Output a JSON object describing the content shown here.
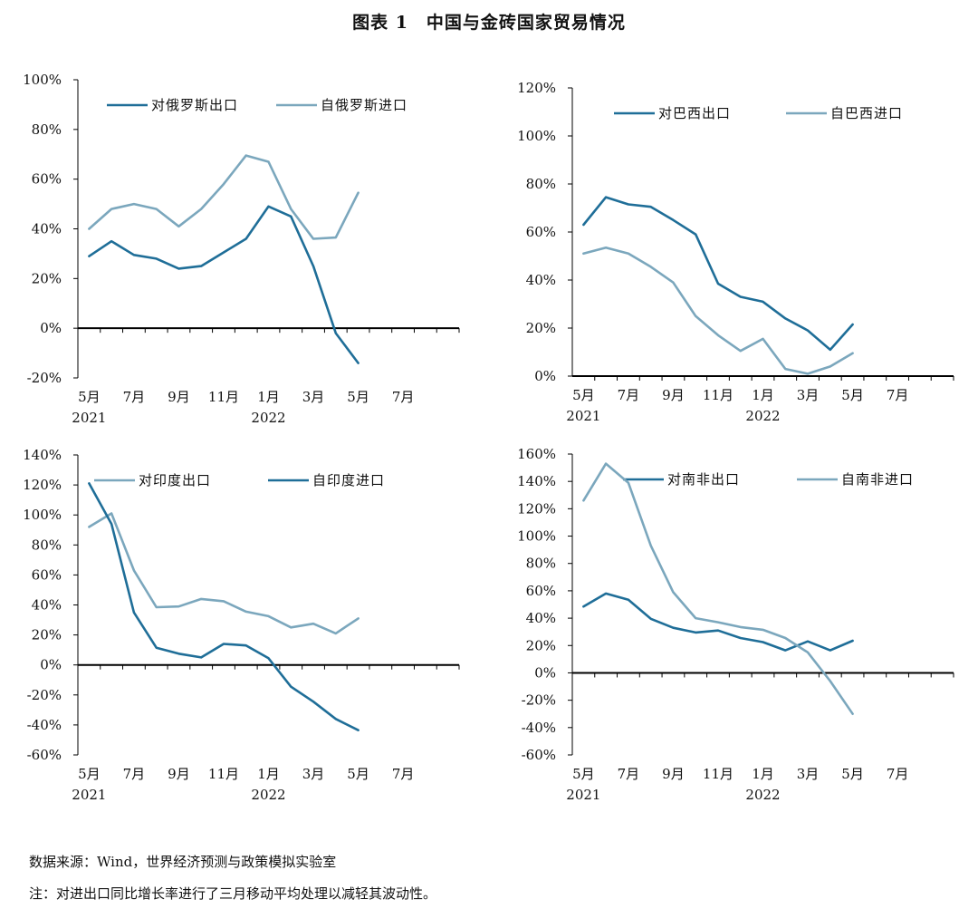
{
  "title": "图表 1　中国与金砖国家贸易情况",
  "source": "数据来源：Wind，世界经济预测与政策模拟实验室",
  "note": "注：对进出口同比增长率进行了三月移动平均处理以减轻其波动性。",
  "colors": {
    "dark": "#1f6e98",
    "light": "#7ba7bd",
    "axis": "#000000"
  },
  "chart_data": [
    {
      "type": "line",
      "x": [
        "2021-05",
        "2021-06",
        "2021-07",
        "2021-08",
        "2021-09",
        "2021-10",
        "2021-11",
        "2021-12",
        "2022-01",
        "2022-02",
        "2022-03",
        "2022-04",
        "2022-05"
      ],
      "x_tick_labels": [
        "5月",
        "7月",
        "9月",
        "11月",
        "1月",
        "3月",
        "5月",
        "7月"
      ],
      "x_year_labels": [
        "2021",
        "2022"
      ],
      "y_tick_labels": [
        "100%",
        "80%",
        "60%",
        "40%",
        "20%",
        "0%",
        "-20%"
      ],
      "ylim": [
        -20,
        100
      ],
      "legend_position": "top",
      "series": [
        {
          "name": "对俄罗斯出口",
          "color": "dark",
          "values": [
            29,
            35,
            29.5,
            28,
            24,
            25,
            30.5,
            36,
            49,
            45,
            25,
            -2,
            -14
          ]
        },
        {
          "name": "自俄罗斯进口",
          "color": "light",
          "values": [
            40,
            48,
            50,
            48,
            41,
            48,
            58,
            69.5,
            67,
            48,
            36,
            36.5,
            54.5
          ]
        }
      ]
    },
    {
      "type": "line",
      "x": [
        "2021-05",
        "2021-06",
        "2021-07",
        "2021-08",
        "2021-09",
        "2021-10",
        "2021-11",
        "2021-12",
        "2022-01",
        "2022-02",
        "2022-03",
        "2022-04",
        "2022-05"
      ],
      "x_tick_labels": [
        "5月",
        "7月",
        "9月",
        "11月",
        "1月",
        "3月",
        "5月",
        "7月"
      ],
      "x_year_labels": [
        "2021",
        "2022"
      ],
      "y_tick_labels": [
        "120%",
        "100%",
        "80%",
        "60%",
        "40%",
        "20%",
        "0%"
      ],
      "ylim": [
        0,
        120
      ],
      "legend_position": "top",
      "series": [
        {
          "name": "对巴西出口",
          "color": "dark",
          "values": [
            63,
            74.5,
            71.5,
            70.5,
            65,
            59,
            38.5,
            33,
            31,
            24,
            19,
            11,
            21.5
          ]
        },
        {
          "name": "自巴西进口",
          "color": "light",
          "values": [
            51,
            53.5,
            51,
            45.5,
            39,
            25,
            17,
            10.5,
            15.5,
            3,
            1,
            4,
            9.5
          ]
        }
      ]
    },
    {
      "type": "line",
      "x": [
        "2021-05",
        "2021-06",
        "2021-07",
        "2021-08",
        "2021-09",
        "2021-10",
        "2021-11",
        "2021-12",
        "2022-01",
        "2022-02",
        "2022-03",
        "2022-04",
        "2022-05"
      ],
      "x_tick_labels": [
        "5月",
        "7月",
        "9月",
        "11月",
        "1月",
        "3月",
        "5月",
        "7月"
      ],
      "x_year_labels": [
        "2021",
        "2022"
      ],
      "y_tick_labels": [
        "140%",
        "120%",
        "100%",
        "80%",
        "60%",
        "40%",
        "20%",
        "0%",
        "-20%",
        "-40%",
        "-60%"
      ],
      "ylim": [
        -60,
        140
      ],
      "legend_position": "top",
      "series": [
        {
          "name": "对印度出口",
          "color": "light",
          "values": [
            92,
            101,
            63,
            38.5,
            39,
            44,
            42.5,
            35.5,
            32.5,
            25,
            27.5,
            21,
            31
          ]
        },
        {
          "name": "自印度进口",
          "color": "dark",
          "values": [
            121,
            94,
            35,
            11.5,
            7.5,
            5,
            14,
            13,
            4.5,
            -14.5,
            -24.5,
            -36,
            -43.5
          ]
        }
      ]
    },
    {
      "type": "line",
      "x": [
        "2021-05",
        "2021-06",
        "2021-07",
        "2021-08",
        "2021-09",
        "2021-10",
        "2021-11",
        "2021-12",
        "2022-01",
        "2022-02",
        "2022-03",
        "2022-04",
        "2022-05"
      ],
      "x_tick_labels": [
        "5月",
        "7月",
        "9月",
        "11月",
        "1月",
        "3月",
        "5月",
        "7月"
      ],
      "x_year_labels": [
        "2021",
        "2022"
      ],
      "y_tick_labels": [
        "160%",
        "140%",
        "120%",
        "100%",
        "80%",
        "60%",
        "40%",
        "20%",
        "0%",
        "-20%",
        "-40%",
        "-60%"
      ],
      "ylim": [
        -60,
        160
      ],
      "legend_position": "top",
      "series": [
        {
          "name": "对南非出口",
          "color": "dark",
          "values": [
            48.5,
            58,
            53.5,
            39.5,
            33,
            29.5,
            31,
            25.5,
            22.5,
            16.5,
            23,
            16.5,
            23.5
          ]
        },
        {
          "name": "自南非进口",
          "color": "light",
          "values": [
            126,
            153,
            139,
            93,
            59,
            40,
            37,
            33.5,
            31.5,
            25.5,
            15,
            -6,
            -30
          ]
        }
      ]
    }
  ]
}
